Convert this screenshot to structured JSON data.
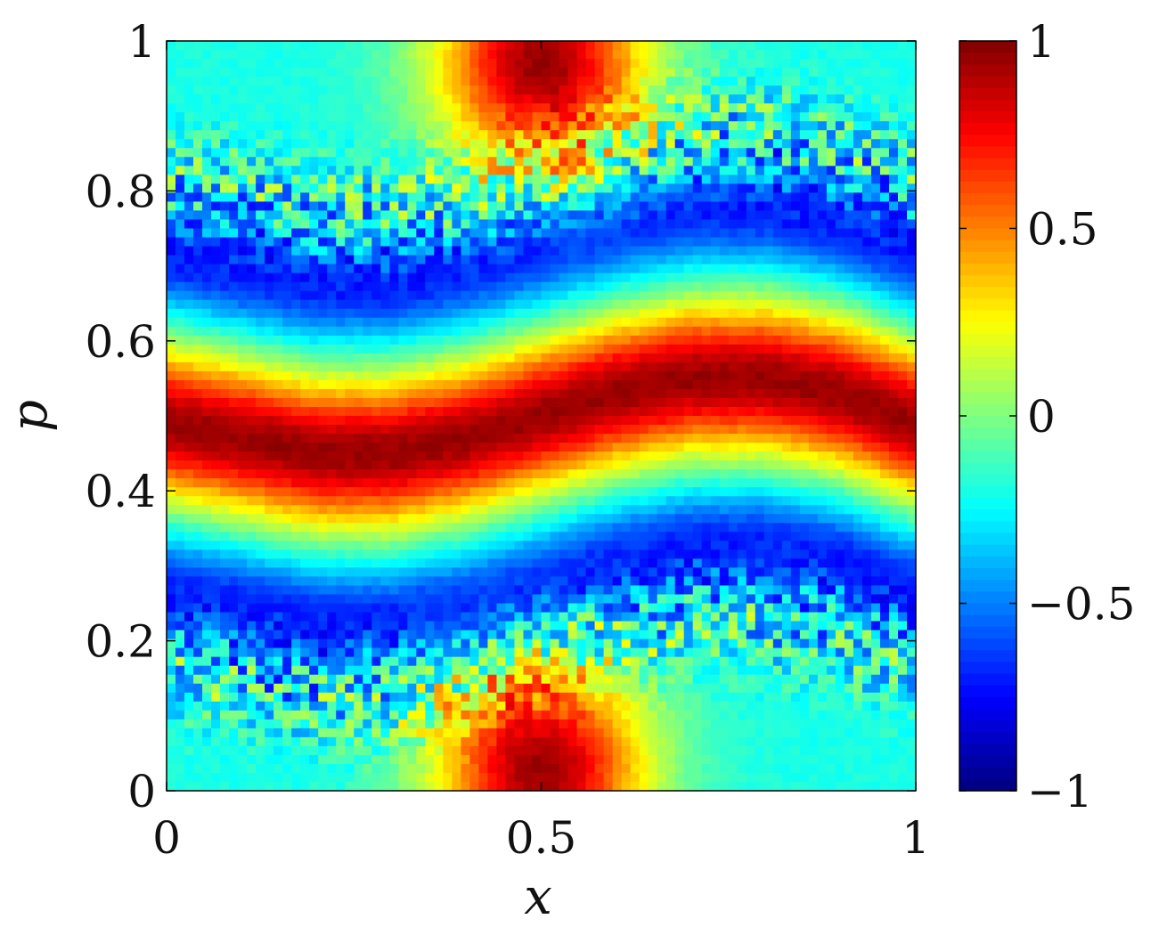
{
  "chart_data": {
    "type": "heatmap",
    "title": "",
    "xlabel": "x",
    "ylabel": "p",
    "xlim": [
      0,
      1
    ],
    "ylim": [
      0,
      1
    ],
    "x_ticks": [
      0,
      0.5,
      1
    ],
    "x_tick_labels": [
      "0",
      "0.5",
      "1"
    ],
    "y_ticks": [
      0,
      0.2,
      0.4,
      0.6,
      0.8,
      1
    ],
    "y_tick_labels": [
      "0",
      "0.2",
      "0.4",
      "0.6",
      "0.8",
      "1"
    ],
    "colormap": "jet",
    "colorbar": {
      "range": [
        -1,
        1
      ],
      "ticks": [
        -1,
        -0.5,
        0,
        0.5,
        1
      ],
      "tick_labels": [
        "−1",
        "−0.5",
        "0",
        "0.5",
        "1"
      ]
    },
    "features": {
      "central_band_center_p": [
        [
          0.0,
          0.49
        ],
        [
          0.1,
          0.47
        ],
        [
          0.2,
          0.45
        ],
        [
          0.3,
          0.45
        ],
        [
          0.4,
          0.47
        ],
        [
          0.5,
          0.5
        ],
        [
          0.6,
          0.53
        ],
        [
          0.7,
          0.55
        ],
        [
          0.8,
          0.55
        ],
        [
          0.9,
          0.53
        ],
        [
          1.0,
          0.49
        ]
      ],
      "central_band_value": 0.95,
      "top_blob": {
        "x": 0.5,
        "p": 0.97,
        "value": 0.95
      },
      "bottom_blob": {
        "x": 0.5,
        "p": 0.03,
        "value": 0.95
      },
      "negative_band_value": -0.7,
      "background_value": -0.2
    }
  }
}
